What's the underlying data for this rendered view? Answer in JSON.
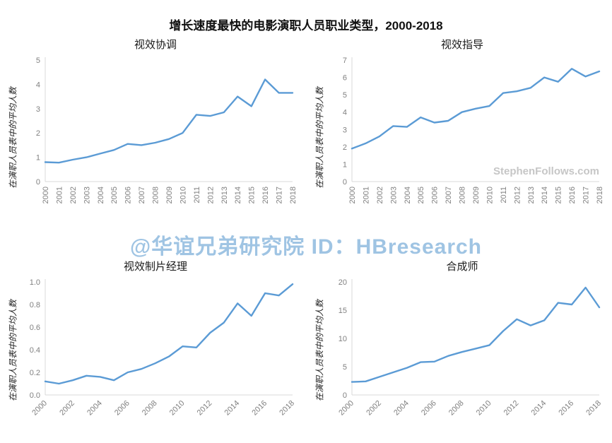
{
  "page": {
    "title": "增长速度最快的电影演职人员职业类型，2000-2018"
  },
  "watermark": {
    "center": "@华谊兄弟研究院 ID：HBresearch",
    "source": "StephenFollows.com"
  },
  "colors": {
    "line": "#5b9bd5",
    "axis": "#d9d9d9",
    "tick_text": "#808080",
    "watermark": "#8fbadf",
    "source_watermark": "#c0c0c0"
  },
  "chart_data": [
    {
      "type": "line",
      "title": "视效协调",
      "ylabel": "在演职人员表中的平均人数",
      "x": [
        "2000",
        "2001",
        "2002",
        "2003",
        "2004",
        "2005",
        "2006",
        "2007",
        "2008",
        "2009",
        "2010",
        "2011",
        "2012",
        "2013",
        "2014",
        "2015",
        "2016",
        "2017",
        "2018"
      ],
      "xticks": [
        "2000",
        "2001",
        "2002",
        "2003",
        "2004",
        "2005",
        "2006",
        "2007",
        "2008",
        "2009",
        "2010",
        "2011",
        "2012",
        "2013",
        "2014",
        "2015",
        "2016",
        "2017",
        "2018"
      ],
      "values": [
        0.8,
        0.78,
        0.9,
        1.0,
        1.15,
        1.3,
        1.55,
        1.5,
        1.6,
        1.75,
        2.0,
        2.75,
        2.7,
        2.85,
        3.5,
        3.1,
        4.2,
        3.65,
        3.65
      ],
      "ylim": [
        0,
        5
      ],
      "yticks": [
        "0",
        "1",
        "2",
        "3",
        "4",
        "5"
      ],
      "x_rot": 90,
      "grid": false,
      "legend": "none"
    },
    {
      "type": "line",
      "title": "视效指导",
      "ylabel": "在演职人员表中的平均人数",
      "x": [
        "2000",
        "2001",
        "2002",
        "2003",
        "2004",
        "2005",
        "2006",
        "2007",
        "2008",
        "2009",
        "2010",
        "2011",
        "2012",
        "2013",
        "2014",
        "2015",
        "2016",
        "2017",
        "2018"
      ],
      "xticks": [
        "2000",
        "2001",
        "2002",
        "2003",
        "2004",
        "2005",
        "2006",
        "2007",
        "2008",
        "2009",
        "2010",
        "2011",
        "2012",
        "2013",
        "2014",
        "2015",
        "2016",
        "2017",
        "2018"
      ],
      "values": [
        1.9,
        2.2,
        2.6,
        3.2,
        3.15,
        3.7,
        3.4,
        3.5,
        4.0,
        4.2,
        4.35,
        5.1,
        5.2,
        5.4,
        6.0,
        5.75,
        6.5,
        6.05,
        6.35
      ],
      "ylim": [
        0,
        7
      ],
      "yticks": [
        "0",
        "1",
        "2",
        "3",
        "4",
        "5",
        "6",
        "7"
      ],
      "x_rot": 90,
      "grid": false,
      "legend": "none"
    },
    {
      "type": "line",
      "title": "视效制片经理",
      "ylabel": "在演职人员表中的平均人数",
      "x": [
        "2000",
        "2001",
        "2002",
        "2003",
        "2004",
        "2005",
        "2006",
        "2007",
        "2008",
        "2009",
        "2010",
        "2011",
        "2012",
        "2013",
        "2014",
        "2015",
        "2016",
        "2017",
        "2018"
      ],
      "xticks": [
        "2000",
        "2002",
        "2004",
        "2006",
        "2008",
        "2010",
        "2012",
        "2014",
        "2016",
        "2018"
      ],
      "values": [
        0.12,
        0.1,
        0.13,
        0.17,
        0.16,
        0.13,
        0.2,
        0.23,
        0.28,
        0.34,
        0.43,
        0.42,
        0.55,
        0.64,
        0.81,
        0.7,
        0.9,
        0.88,
        0.98
      ],
      "ylim": [
        0,
        1
      ],
      "yticks": [
        "0.0",
        "0.2",
        "0.4",
        "0.6",
        "0.8",
        "1.0"
      ],
      "x_rot": 45,
      "grid": false,
      "legend": "none"
    },
    {
      "type": "line",
      "title": "合成师",
      "ylabel": "在演职人员表中的平均人数",
      "x": [
        "2000",
        "2001",
        "2002",
        "2003",
        "2004",
        "2005",
        "2006",
        "2007",
        "2008",
        "2009",
        "2010",
        "2011",
        "2012",
        "2013",
        "2014",
        "2015",
        "2016",
        "2017",
        "2018"
      ],
      "xticks": [
        "2000",
        "2002",
        "2004",
        "2006",
        "2008",
        "2010",
        "2012",
        "2014",
        "2016",
        "2018"
      ],
      "values": [
        2.3,
        2.4,
        3.2,
        4.0,
        4.8,
        5.8,
        5.9,
        6.9,
        7.6,
        8.2,
        8.8,
        11.3,
        13.4,
        12.3,
        13.2,
        16.3,
        16.0,
        19.0,
        15.5
      ],
      "ylim": [
        0,
        20
      ],
      "yticks": [
        "0",
        "5",
        "10",
        "15",
        "20"
      ],
      "x_rot": 45,
      "grid": false,
      "legend": "none"
    }
  ]
}
